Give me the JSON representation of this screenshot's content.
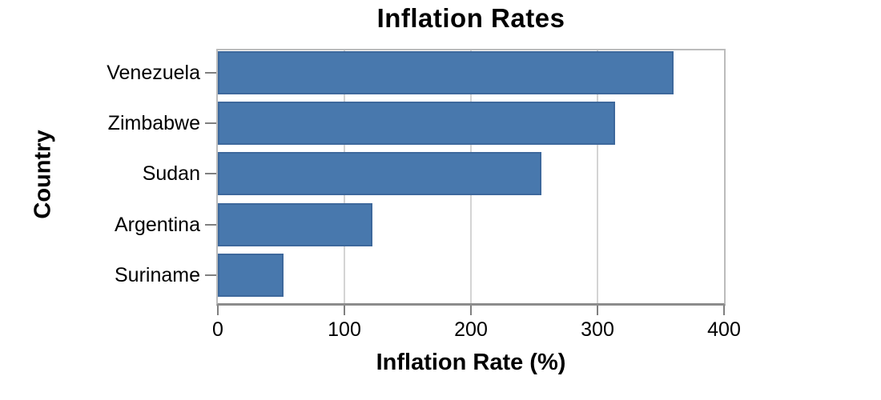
{
  "chart_data": {
    "type": "bar",
    "orientation": "horizontal",
    "title": "Inflation Rates",
    "xlabel": "Inflation Rate (%)",
    "ylabel": "Country",
    "categories": [
      "Venezuela",
      "Zimbabwe",
      "Sudan",
      "Argentina",
      "Suriname"
    ],
    "values": [
      360,
      314,
      256,
      122,
      52
    ],
    "xlim": [
      0,
      400
    ],
    "xticks": [
      0,
      100,
      200,
      300,
      400
    ],
    "grid": true,
    "legend": "none",
    "colors": {
      "bar_fill": "#4878ad",
      "bar_edge": "#3d689c",
      "gridline": "#d4d4d4",
      "frame": "#bcbcbc",
      "bottom_axis": "#8c8c8c",
      "tick_mark": "#808080",
      "text": "#000000",
      "background": "#ffffff"
    }
  }
}
